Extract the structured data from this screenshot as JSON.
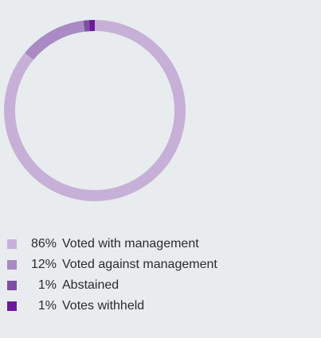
{
  "chart_data": {
    "type": "pie",
    "categories": [
      "Voted with management",
      "Voted against management",
      "Abstained",
      "Votes withheld"
    ],
    "values": [
      86,
      12,
      1,
      1
    ],
    "value_labels": [
      "86%",
      "12%",
      "1%",
      "1%"
    ],
    "colors": [
      "#c7b0d7",
      "#a98ac4",
      "#7d4fa3",
      "#6a1a99"
    ],
    "donut": true,
    "start": "top, clockwise",
    "legend": "bottom-left"
  }
}
